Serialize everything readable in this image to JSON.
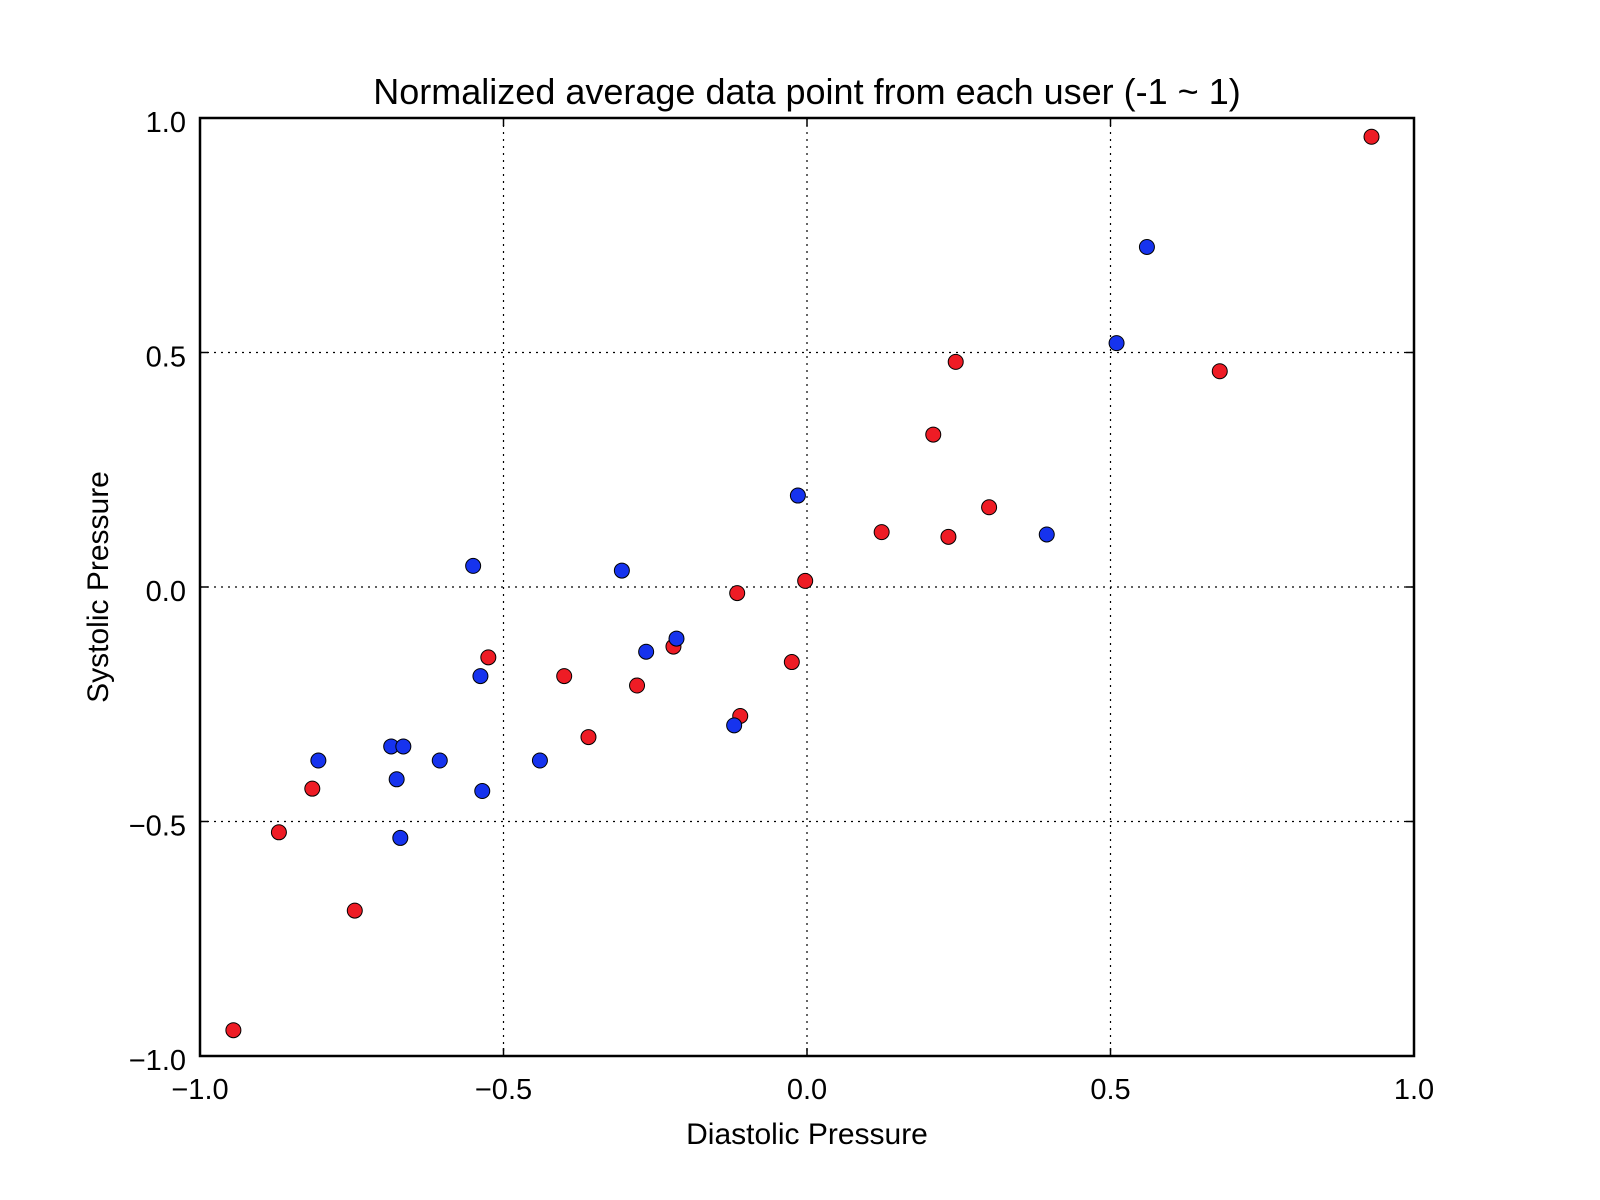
{
  "chart_data": {
    "type": "scatter",
    "title": "Normalized average data point from each user (-1 ~ 1)",
    "xlabel": "Diastolic Pressure",
    "ylabel": "Systolic Pressure",
    "xlim": [
      -1.0,
      1.0
    ],
    "ylim": [
      -1.0,
      1.0
    ],
    "x_ticks": [
      -1.0,
      -0.5,
      0.0,
      0.5,
      1.0
    ],
    "x_tick_labels": [
      "−1.0",
      "−0.5",
      "0.0",
      "0.5",
      "1.0"
    ],
    "y_ticks": [
      -1.0,
      -0.5,
      0.0,
      0.5,
      1.0
    ],
    "y_tick_labels": [
      "−1.0",
      "−0.5",
      "0.0",
      "0.5",
      "1.0"
    ],
    "grid": true,
    "legend": false,
    "series": [
      {
        "color": "#ee1c25",
        "points": [
          {
            "x": 0.93,
            "y": 0.96
          },
          {
            "x": 0.68,
            "y": 0.46
          },
          {
            "x": 0.245,
            "y": 0.48
          },
          {
            "x": 0.208,
            "y": 0.325
          },
          {
            "x": 0.3,
            "y": 0.17
          },
          {
            "x": 0.123,
            "y": 0.117
          },
          {
            "x": 0.233,
            "y": 0.107
          },
          {
            "x": -0.003,
            "y": 0.013
          },
          {
            "x": -0.115,
            "y": -0.013
          },
          {
            "x": -0.025,
            "y": -0.16
          },
          {
            "x": -0.22,
            "y": -0.127
          },
          {
            "x": -0.28,
            "y": -0.21
          },
          {
            "x": -0.4,
            "y": -0.19
          },
          {
            "x": -0.525,
            "y": -0.15
          },
          {
            "x": -0.36,
            "y": -0.32
          },
          {
            "x": -0.11,
            "y": -0.275
          },
          {
            "x": -0.815,
            "y": -0.43
          },
          {
            "x": -0.87,
            "y": -0.523
          },
          {
            "x": -0.745,
            "y": -0.69
          },
          {
            "x": -0.945,
            "y": -0.945
          }
        ]
      },
      {
        "color": "#1633ee",
        "points": [
          {
            "x": 0.56,
            "y": 0.725
          },
          {
            "x": 0.51,
            "y": 0.52
          },
          {
            "x": -0.015,
            "y": 0.195
          },
          {
            "x": 0.395,
            "y": 0.112
          },
          {
            "x": -0.55,
            "y": 0.045
          },
          {
            "x": -0.305,
            "y": 0.035
          },
          {
            "x": -0.215,
            "y": -0.11
          },
          {
            "x": -0.265,
            "y": -0.138
          },
          {
            "x": -0.538,
            "y": -0.19
          },
          {
            "x": -0.12,
            "y": -0.295
          },
          {
            "x": -0.805,
            "y": -0.37
          },
          {
            "x": -0.685,
            "y": -0.34
          },
          {
            "x": -0.665,
            "y": -0.34
          },
          {
            "x": -0.605,
            "y": -0.37
          },
          {
            "x": -0.44,
            "y": -0.37
          },
          {
            "x": -0.676,
            "y": -0.41
          },
          {
            "x": -0.535,
            "y": -0.435
          },
          {
            "x": -0.67,
            "y": -0.535
          }
        ]
      }
    ]
  }
}
